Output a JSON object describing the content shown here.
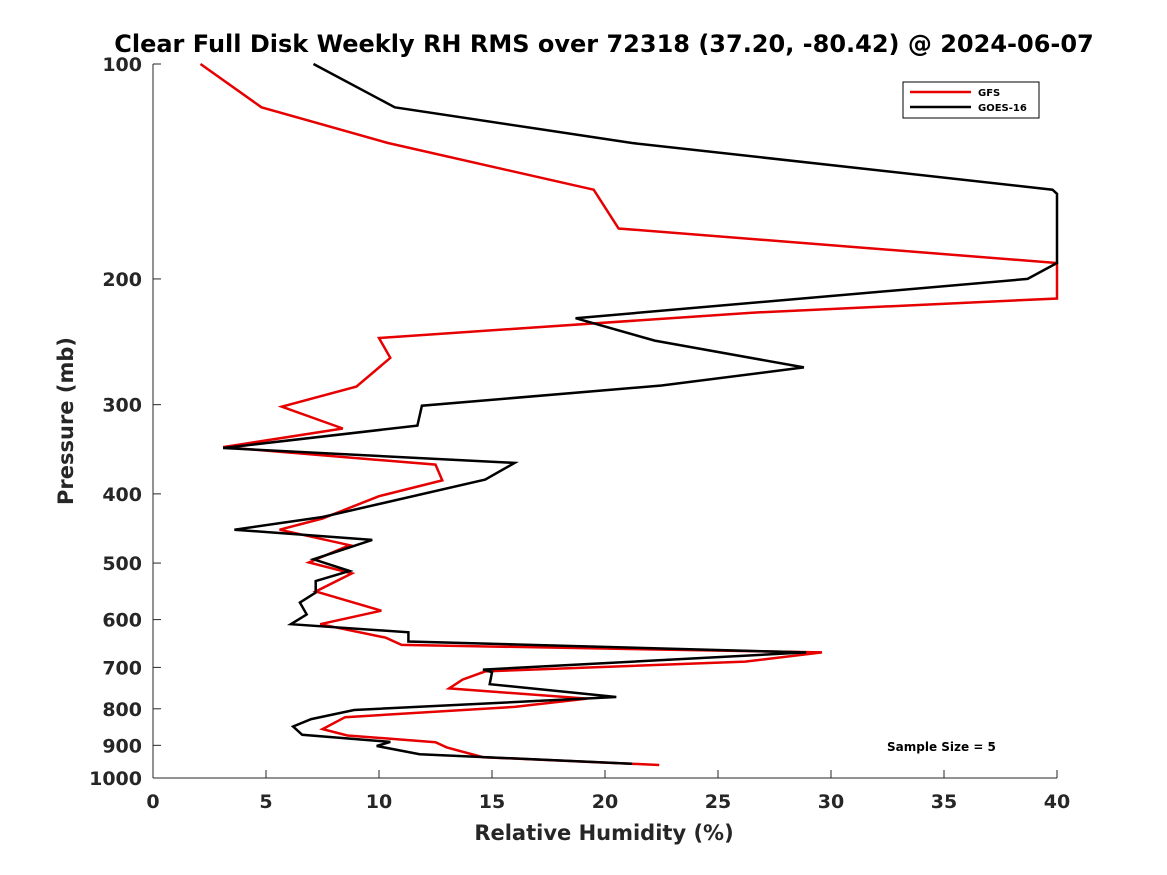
{
  "chart_data": {
    "type": "line",
    "title": "Clear Full Disk Weekly RH RMS over 72318 (37.20, -80.42) @ 2024-06-07",
    "xlabel": "Relative Humidity (%)",
    "ylabel": "Pressure (mb)",
    "xlim": [
      0,
      40
    ],
    "ylim": [
      100,
      1000
    ],
    "y_scale": "log",
    "y_reversed": true,
    "x_ticks": [
      "0",
      "5",
      "10",
      "15",
      "20",
      "25",
      "30",
      "35",
      "40"
    ],
    "y_ticks": [
      "100",
      "200",
      "300",
      "400",
      "500",
      "600",
      "700",
      "800",
      "900",
      "1000"
    ],
    "grid": false,
    "legend_position": "top-right",
    "annotation": "Sample Size = 5",
    "series": [
      {
        "name": "GFS",
        "color": "#e60000",
        "points": [
          [
            2.1,
            100
          ],
          [
            4.8,
            115
          ],
          [
            10.4,
            129
          ],
          [
            19.5,
            150
          ],
          [
            20.6,
            170
          ],
          [
            40.0,
            190
          ],
          [
            40.0,
            213
          ],
          [
            26.5,
            223
          ],
          [
            10.0,
            242
          ],
          [
            10.5,
            258
          ],
          [
            9.0,
            283
          ],
          [
            5.7,
            302
          ],
          [
            8.4,
            324
          ],
          [
            3.1,
            344
          ],
          [
            12.5,
            364
          ],
          [
            12.8,
            383
          ],
          [
            10.0,
            403
          ],
          [
            7.5,
            433
          ],
          [
            5.6,
            449
          ],
          [
            8.7,
            472
          ],
          [
            6.9,
            499
          ],
          [
            8.8,
            517
          ],
          [
            7.2,
            548
          ],
          [
            10.1,
            583
          ],
          [
            7.4,
            609
          ],
          [
            10.3,
            636
          ],
          [
            11.0,
            651
          ],
          [
            29.6,
            667
          ],
          [
            26.2,
            687
          ],
          [
            14.7,
            709
          ],
          [
            13.7,
            728
          ],
          [
            13.1,
            749
          ],
          [
            19.2,
            774
          ],
          [
            16.0,
            795
          ],
          [
            8.5,
            822
          ],
          [
            7.5,
            854
          ],
          [
            8.6,
            872
          ],
          [
            12.5,
            891
          ],
          [
            13.0,
            906
          ],
          [
            14.6,
            935
          ],
          [
            22.4,
            959
          ]
        ]
      },
      {
        "name": "GOES-16",
        "color": "#000000",
        "points": [
          [
            7.1,
            100
          ],
          [
            10.7,
            115
          ],
          [
            21.2,
            129
          ],
          [
            39.8,
            150
          ],
          [
            40.0,
            152
          ],
          [
            40.0,
            190
          ],
          [
            38.7,
            200
          ],
          [
            18.7,
            227
          ],
          [
            22.2,
            244
          ],
          [
            28.8,
            266
          ],
          [
            22.5,
            282
          ],
          [
            11.9,
            301
          ],
          [
            11.7,
            321
          ],
          [
            3.1,
            345
          ],
          [
            16.0,
            362
          ],
          [
            14.7,
            382
          ],
          [
            7.5,
            431
          ],
          [
            3.6,
            449
          ],
          [
            9.7,
            464
          ],
          [
            7.1,
            494
          ],
          [
            8.7,
            513
          ],
          [
            7.2,
            530
          ],
          [
            7.2,
            550
          ],
          [
            6.5,
            568
          ],
          [
            6.8,
            590
          ],
          [
            6.1,
            609
          ],
          [
            11.3,
            625
          ],
          [
            11.3,
            644
          ],
          [
            28.9,
            667
          ],
          [
            14.6,
            705
          ],
          [
            15.0,
            711
          ],
          [
            14.9,
            739
          ],
          [
            20.5,
            770
          ],
          [
            8.9,
            803
          ],
          [
            7.0,
            827
          ],
          [
            6.2,
            847
          ],
          [
            6.6,
            870
          ],
          [
            10.5,
            890
          ],
          [
            9.9,
            902
          ],
          [
            11.8,
            926
          ],
          [
            21.2,
            955
          ]
        ]
      }
    ]
  }
}
